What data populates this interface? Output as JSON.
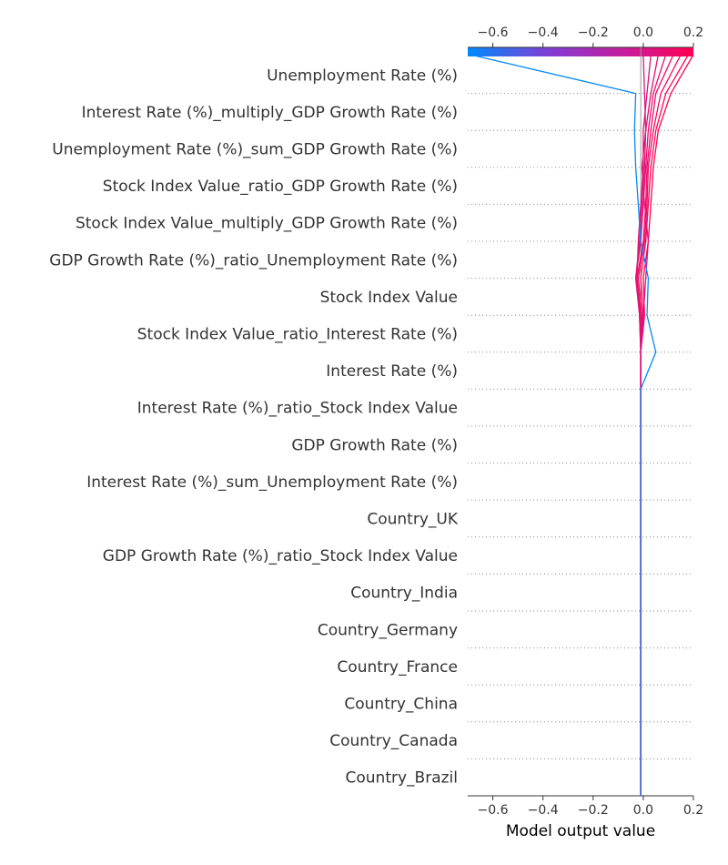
{
  "chart_data": {
    "type": "decision_plot",
    "xlabel": "Model output value",
    "xlim": [
      -0.7,
      0.2
    ],
    "ticks": [
      -0.6,
      -0.4,
      -0.2,
      0.0,
      0.2
    ],
    "tick_labels": [
      "−0.6",
      "−0.4",
      "−0.2",
      "0.0",
      "0.2"
    ],
    "base_value": -0.01,
    "features": [
      "Unemployment Rate (%)",
      "Interest Rate (%)_multiply_GDP Growth Rate (%)",
      "Unemployment Rate (%)_sum_GDP Growth Rate (%)",
      "Stock Index Value_ratio_GDP Growth Rate (%)",
      "Stock Index Value_multiply_GDP Growth Rate (%)",
      "GDP Growth Rate (%)_ratio_Unemployment Rate (%)",
      "Stock Index Value",
      "Stock Index Value_ratio_Interest Rate (%)",
      "Interest Rate (%)",
      "Interest Rate (%)_ratio_Stock Index Value",
      "GDP Growth Rate (%)",
      "Interest Rate (%)_sum_Unemployment Rate (%)",
      "Country_UK",
      "GDP Growth Rate (%)_ratio_Stock Index Value",
      "Country_India",
      "Country_Germany",
      "Country_France",
      "Country_China",
      "Country_Canada",
      "Country_Brazil"
    ],
    "colormap": [
      "#008afb",
      "#7d3fd6",
      "#c81d9b",
      "#ff0052"
    ],
    "lines": [
      {
        "output": -0.69,
        "path": [
          -0.69,
          -0.03,
          -0.035,
          -0.03,
          -0.02,
          -0.01,
          0.02,
          0.015,
          0.05,
          -0.01,
          -0.01,
          -0.01,
          -0.01,
          -0.01,
          -0.01,
          -0.01,
          -0.01,
          -0.01,
          -0.01,
          -0.01,
          -0.01
        ]
      },
      {
        "output": 0.2,
        "path": [
          0.2,
          0.11,
          0.06,
          0.04,
          0.03,
          0.02,
          0.0,
          0.005,
          -0.01,
          -0.01,
          -0.01,
          -0.01,
          -0.01,
          -0.01,
          -0.01,
          -0.01,
          -0.01,
          -0.01,
          -0.01,
          -0.01,
          -0.01
        ]
      },
      {
        "output": 0.18,
        "path": [
          0.18,
          0.09,
          0.05,
          0.03,
          0.02,
          0.01,
          -0.01,
          0.0,
          -0.01,
          -0.01,
          -0.01,
          -0.01,
          -0.01,
          -0.01,
          -0.01,
          -0.01,
          -0.01,
          -0.01,
          -0.01,
          -0.01,
          -0.01
        ]
      },
      {
        "output": 0.15,
        "path": [
          0.15,
          0.07,
          0.04,
          0.02,
          0.015,
          0.005,
          -0.02,
          -0.005,
          -0.01,
          -0.01,
          -0.01,
          -0.01,
          -0.01,
          -0.01,
          -0.01,
          -0.01,
          -0.01,
          -0.01,
          -0.01,
          -0.01,
          -0.01
        ]
      },
      {
        "output": 0.12,
        "path": [
          0.12,
          0.05,
          0.03,
          0.015,
          0.01,
          0.0,
          -0.025,
          -0.01,
          -0.01,
          -0.01,
          -0.01,
          -0.01,
          -0.01,
          -0.01,
          -0.01,
          -0.01,
          -0.01,
          -0.01,
          -0.01,
          -0.01,
          -0.01
        ]
      },
      {
        "output": 0.09,
        "path": [
          0.09,
          0.04,
          0.02,
          0.01,
          0.0,
          -0.01,
          -0.03,
          -0.01,
          -0.01,
          -0.01,
          -0.01,
          -0.01,
          -0.01,
          -0.01,
          -0.01,
          -0.01,
          -0.01,
          -0.01,
          -0.01,
          -0.01,
          -0.01
        ]
      },
      {
        "output": 0.06,
        "path": [
          0.06,
          0.03,
          0.01,
          0.005,
          -0.005,
          -0.015,
          -0.03,
          -0.015,
          -0.01,
          -0.01,
          -0.01,
          -0.01,
          -0.01,
          -0.01,
          -0.01,
          -0.01,
          -0.01,
          -0.01,
          -0.01,
          -0.01,
          -0.01
        ]
      },
      {
        "output": 0.03,
        "path": [
          0.03,
          0.015,
          0.0,
          0.0,
          -0.01,
          -0.02,
          -0.025,
          -0.015,
          -0.01,
          -0.01,
          -0.01,
          -0.01,
          -0.01,
          -0.01,
          -0.01,
          -0.01,
          -0.01,
          -0.01,
          -0.01,
          -0.01,
          -0.01
        ]
      },
      {
        "output": 0.0,
        "path": [
          0.0,
          0.005,
          0.01,
          -0.005,
          0.005,
          0.02,
          0.01,
          0.0,
          -0.01,
          -0.01,
          -0.01,
          -0.01,
          -0.01,
          -0.01,
          -0.01,
          -0.01,
          -0.01,
          -0.01,
          -0.01,
          -0.01,
          -0.01
        ]
      }
    ]
  }
}
